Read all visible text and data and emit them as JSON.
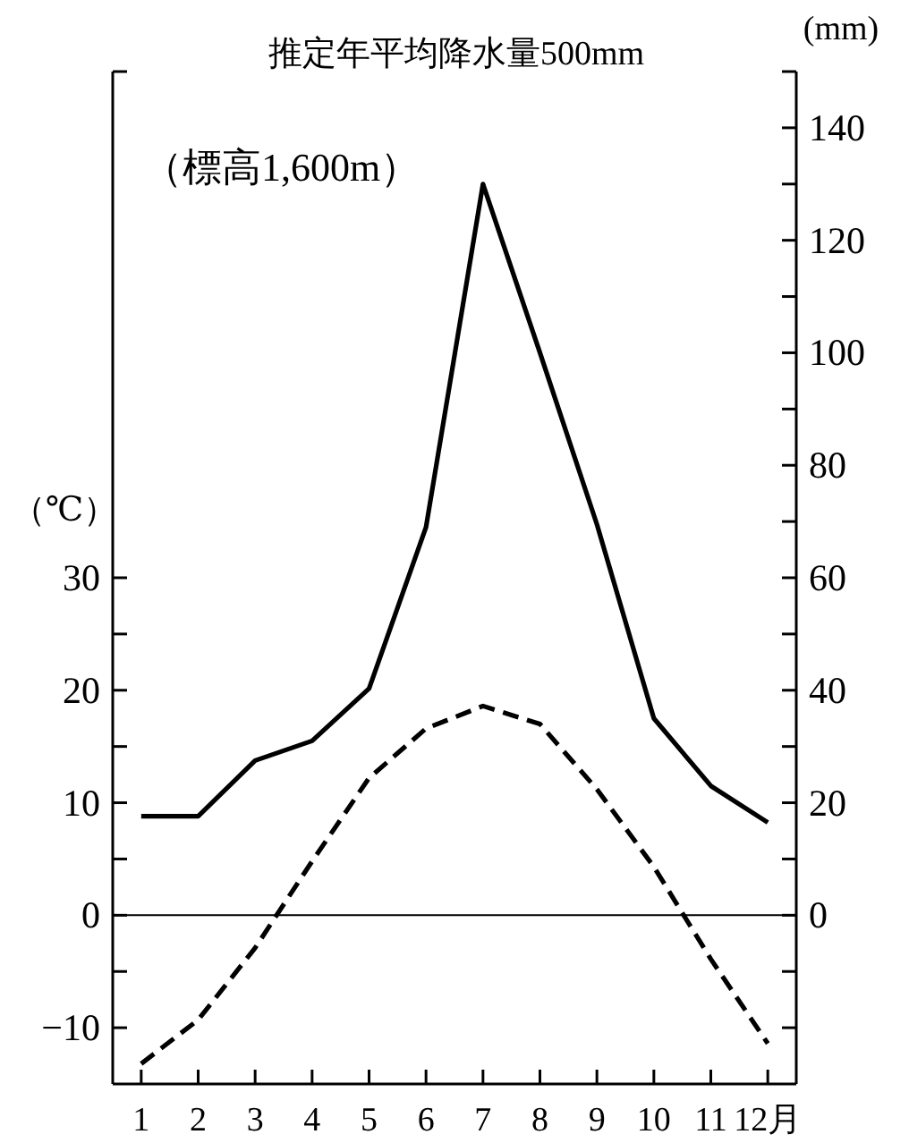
{
  "chart_data": {
    "type": "line",
    "ylabel": "（℃）",
    "y2label": "(mm)",
    "annotations": [
      "推定年平均降水量500mm",
      "（標高1,600m）"
    ],
    "categories": [
      "1",
      "2",
      "3",
      "4",
      "5",
      "6",
      "7",
      "8",
      "9",
      "10",
      "11",
      "12月"
    ],
    "series": [
      {
        "axis": "y2",
        "color": "#000000",
        "line_style": "solid",
        "values": [
          17.6,
          17.6,
          27.5,
          31,
          40.3,
          69,
          130,
          100,
          69.5,
          35,
          23,
          16.5
        ]
      },
      {
        "axis": "y",
        "color": "#000000",
        "line_style": "dashed",
        "values": [
          -13.2,
          -9.3,
          -2.9,
          4.8,
          12.2,
          16.6,
          18.6,
          17,
          11.2,
          4.3,
          -3.9,
          -11.4
        ]
      }
    ],
    "ylim": [
      -15,
      75
    ],
    "yticks": [
      -10,
      {
        "value": -5,
        "label": null
      },
      0,
      {
        "value": 5,
        "label": null
      },
      10,
      {
        "value": 15,
        "label": null
      },
      20,
      {
        "value": 25,
        "label": null
      },
      30
    ],
    "y2lim": [
      -30,
      150
    ],
    "y2ticks": [
      {
        "value": -20,
        "label": null
      },
      {
        "value": -10,
        "label": null
      },
      0,
      {
        "value": 10,
        "label": null
      },
      20,
      {
        "value": 30,
        "label": null
      },
      40,
      {
        "value": 50,
        "label": null
      },
      60,
      {
        "value": 70,
        "label": null
      },
      80,
      {
        "value": 90,
        "label": null
      },
      100,
      {
        "value": 110,
        "label": null
      },
      120,
      {
        "value": 130,
        "label": null
      },
      140
    ],
    "ref_lines": [
      {
        "axis": "y",
        "value": 0,
        "color": "#000000"
      }
    ],
    "grid": false
  }
}
